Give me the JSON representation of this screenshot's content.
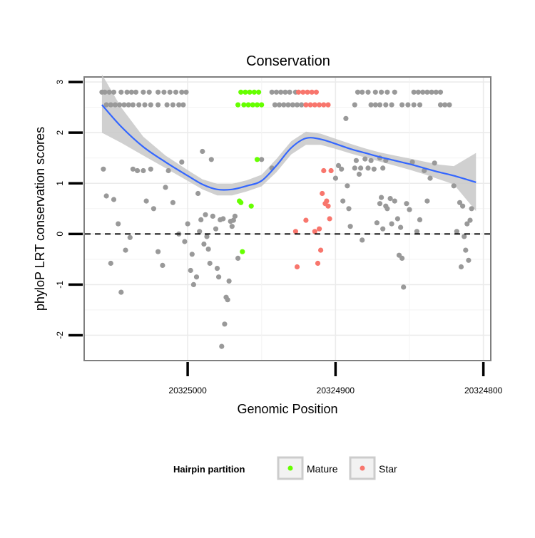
{
  "chart_data": {
    "type": "scatter",
    "title": "Conservation",
    "xlabel": "Genomic Position",
    "ylabel": "phyloP LRT conservation scores",
    "x_reversed": true,
    "xlim": [
      20325070,
      20324795
    ],
    "ylim": [
      -2.5,
      3.1
    ],
    "x_ticks": [
      20325000,
      20324900,
      20324800
    ],
    "x_tick_labels": [
      "20325000",
      "20324900",
      "20324800"
    ],
    "y_ticks": [
      -2,
      -1,
      0,
      1,
      2,
      3
    ],
    "y_tick_labels": [
      "-2",
      "-1",
      "0",
      "1",
      "2",
      "3"
    ],
    "reference_line": {
      "y": 0,
      "style": "dashed",
      "color": "#000000"
    },
    "grid": true,
    "legend": {
      "title": "Hairpin partition",
      "position": "bottom",
      "entries": [
        {
          "label": "Mature",
          "color": "#66ff00"
        },
        {
          "label": "Star",
          "color": "#f8766d"
        }
      ]
    },
    "colors": {
      "other": "#999999",
      "Mature": "#66ff00",
      "Star": "#f8766d",
      "smooth": "#3366ff",
      "ribbon": "#c8c8c8"
    },
    "smooth": {
      "x": [
        20325058,
        20325045,
        20325030,
        20325015,
        20325000,
        20324990,
        20324980,
        20324970,
        20324960,
        20324950,
        20324940,
        20324930,
        20324920,
        20324910,
        20324900,
        20324890,
        20324880,
        20324870,
        20324860,
        20324850,
        20324840,
        20324830,
        20324820,
        20324805
      ],
      "y": [
        2.55,
        2.12,
        1.72,
        1.42,
        1.15,
        0.98,
        0.88,
        0.88,
        0.95,
        1.05,
        1.35,
        1.7,
        1.89,
        1.87,
        1.78,
        1.68,
        1.6,
        1.52,
        1.45,
        1.38,
        1.3,
        1.22,
        1.15,
        1.02
      ],
      "lower": [
        2.0,
        1.8,
        1.55,
        1.3,
        1.05,
        0.88,
        0.76,
        0.76,
        0.84,
        0.94,
        1.22,
        1.57,
        1.76,
        1.76,
        1.68,
        1.59,
        1.51,
        1.43,
        1.35,
        1.27,
        1.18,
        1.08,
        0.98,
        0.45
      ],
      "upper": [
        3.15,
        2.5,
        1.92,
        1.55,
        1.26,
        1.08,
        0.99,
        0.99,
        1.06,
        1.17,
        1.48,
        1.83,
        2.02,
        1.98,
        1.88,
        1.78,
        1.69,
        1.61,
        1.55,
        1.49,
        1.43,
        1.37,
        1.34,
        1.6
      ]
    },
    "series": [
      {
        "name": "other",
        "points": [
          [
            20325058,
            2.8
          ],
          [
            20325056,
            2.8
          ],
          [
            20325053,
            2.8
          ],
          [
            20325050,
            2.8
          ],
          [
            20325045,
            2.8
          ],
          [
            20325041,
            2.8
          ],
          [
            20325038,
            2.8
          ],
          [
            20325035,
            2.8
          ],
          [
            20325030,
            2.8
          ],
          [
            20325026,
            2.8
          ],
          [
            20325020,
            2.8
          ],
          [
            20325016,
            2.8
          ],
          [
            20325012,
            2.8
          ],
          [
            20325008,
            2.8
          ],
          [
            20325004,
            2.8
          ],
          [
            20325001,
            2.8
          ],
          [
            20325055,
            2.55
          ],
          [
            20325052,
            2.55
          ],
          [
            20325049,
            2.55
          ],
          [
            20325046,
            2.55
          ],
          [
            20325043,
            2.55
          ],
          [
            20325040,
            2.55
          ],
          [
            20325037,
            2.55
          ],
          [
            20325033,
            2.55
          ],
          [
            20325029,
            2.55
          ],
          [
            20325025,
            2.55
          ],
          [
            20325020,
            2.55
          ],
          [
            20325014,
            2.55
          ],
          [
            20325010,
            2.55
          ],
          [
            20325006,
            2.55
          ],
          [
            20325003,
            2.55
          ],
          [
            20324943,
            2.8
          ],
          [
            20324940,
            2.8
          ],
          [
            20324937,
            2.8
          ],
          [
            20324934,
            2.8
          ],
          [
            20324931,
            2.8
          ],
          [
            20324927,
            2.8
          ],
          [
            20324941,
            2.55
          ],
          [
            20324938,
            2.55
          ],
          [
            20324935,
            2.55
          ],
          [
            20324932,
            2.55
          ],
          [
            20324929,
            2.55
          ],
          [
            20324926,
            2.55
          ],
          [
            20324923,
            2.55
          ],
          [
            20324885,
            2.8
          ],
          [
            20324882,
            2.8
          ],
          [
            20324878,
            2.8
          ],
          [
            20324873,
            2.8
          ],
          [
            20324869,
            2.8
          ],
          [
            20324865,
            2.8
          ],
          [
            20324860,
            2.8
          ],
          [
            20324847,
            2.8
          ],
          [
            20324844,
            2.8
          ],
          [
            20324841,
            2.8
          ],
          [
            20324838,
            2.8
          ],
          [
            20324835,
            2.8
          ],
          [
            20324832,
            2.8
          ],
          [
            20324829,
            2.8
          ],
          [
            20324887,
            2.55
          ],
          [
            20324876,
            2.55
          ],
          [
            20324873,
            2.55
          ],
          [
            20324870,
            2.55
          ],
          [
            20324866,
            2.55
          ],
          [
            20324862,
            2.55
          ],
          [
            20324855,
            2.55
          ],
          [
            20324851,
            2.55
          ],
          [
            20324847,
            2.55
          ],
          [
            20324843,
            2.55
          ],
          [
            20324829,
            2.55
          ],
          [
            20324826,
            2.55
          ],
          [
            20324823,
            2.55
          ],
          [
            20325057,
            1.28
          ],
          [
            20325055,
            0.75
          ],
          [
            20325052,
            -0.58
          ],
          [
            20325050,
            0.68
          ],
          [
            20325047,
            0.2
          ],
          [
            20325045,
            -1.15
          ],
          [
            20325042,
            -0.32
          ],
          [
            20325039,
            -0.07
          ],
          [
            20325037,
            1.28
          ],
          [
            20325034,
            1.25
          ],
          [
            20325030,
            1.25
          ],
          [
            20325028,
            0.65
          ],
          [
            20325025,
            1.28
          ],
          [
            20325023,
            0.5
          ],
          [
            20325020,
            -0.35
          ],
          [
            20325017,
            -0.62
          ],
          [
            20325015,
            0.92
          ],
          [
            20325013,
            1.25
          ],
          [
            20325010,
            0.62
          ],
          [
            20325006,
            0.0
          ],
          [
            20325004,
            1.42
          ],
          [
            20325002,
            -0.15
          ],
          [
            20325000,
            0.2
          ],
          [
            20324998,
            -0.72
          ],
          [
            20324997,
            -0.4
          ],
          [
            20324996,
            -1.0
          ],
          [
            20324994,
            -0.85
          ],
          [
            20324993,
            0.8
          ],
          [
            20324992,
            0.05
          ],
          [
            20324991,
            0.28
          ],
          [
            20324990,
            1.63
          ],
          [
            20324989,
            -0.2
          ],
          [
            20324988,
            0.38
          ],
          [
            20324987,
            -0.05
          ],
          [
            20324986,
            -0.3
          ],
          [
            20324985,
            -0.58
          ],
          [
            20324984,
            1.47
          ],
          [
            20324983,
            0.35
          ],
          [
            20324981,
            0.1
          ],
          [
            20324980,
            -0.68
          ],
          [
            20324979,
            -0.85
          ],
          [
            20324978,
            0.28
          ],
          [
            20324977,
            -2.22
          ],
          [
            20324976,
            0.3
          ],
          [
            20324975,
            -1.78
          ],
          [
            20324974,
            -1.25
          ],
          [
            20324973,
            -1.3
          ],
          [
            20324972,
            -0.93
          ],
          [
            20324971,
            0.25
          ],
          [
            20324970,
            0.15
          ],
          [
            20324969,
            0.27
          ],
          [
            20324968,
            0.35
          ],
          [
            20324966,
            -0.48
          ],
          [
            20324950,
            1.47
          ],
          [
            20324943,
            1.3
          ],
          [
            20324900,
            1.1
          ],
          [
            20324898,
            1.35
          ],
          [
            20324896,
            1.28
          ],
          [
            20324895,
            0.65
          ],
          [
            20324893,
            2.28
          ],
          [
            20324892,
            0.95
          ],
          [
            20324891,
            0.5
          ],
          [
            20324890,
            0.15
          ],
          [
            20324887,
            1.3
          ],
          [
            20324886,
            1.45
          ],
          [
            20324884,
            1.18
          ],
          [
            20324883,
            1.3
          ],
          [
            20324882,
            -0.12
          ],
          [
            20324880,
            1.48
          ],
          [
            20324878,
            1.3
          ],
          [
            20324876,
            1.45
          ],
          [
            20324874,
            1.28
          ],
          [
            20324872,
            0.22
          ],
          [
            20324870,
            1.5
          ],
          [
            20324868,
            1.3
          ],
          [
            20324866,
            1.45
          ],
          [
            20324870,
            0.6
          ],
          [
            20324869,
            0.72
          ],
          [
            20324868,
            0.1
          ],
          [
            20324866,
            0.55
          ],
          [
            20324865,
            0.5
          ],
          [
            20324863,
            0.7
          ],
          [
            20324862,
            0.2
          ],
          [
            20324860,
            0.65
          ],
          [
            20324858,
            0.3
          ],
          [
            20324857,
            -0.42
          ],
          [
            20324856,
            0.13
          ],
          [
            20324855,
            -0.48
          ],
          [
            20324854,
            -1.05
          ],
          [
            20324852,
            0.6
          ],
          [
            20324850,
            0.48
          ],
          [
            20324848,
            1.42
          ],
          [
            20324845,
            0.05
          ],
          [
            20324843,
            0.28
          ],
          [
            20324840,
            1.25
          ],
          [
            20324838,
            0.65
          ],
          [
            20324836,
            1.1
          ],
          [
            20324833,
            1.4
          ],
          [
            20324820,
            0.95
          ],
          [
            20324818,
            0.05
          ],
          [
            20324816,
            0.62
          ],
          [
            20324815,
            -0.65
          ],
          [
            20324814,
            0.55
          ],
          [
            20324813,
            -0.05
          ],
          [
            20324812,
            -0.32
          ],
          [
            20324811,
            0.2
          ],
          [
            20324810,
            -0.52
          ],
          [
            20324809,
            0.27
          ],
          [
            20324808,
            0.5
          ]
        ]
      },
      {
        "name": "Mature",
        "points": [
          [
            20324964,
            2.8
          ],
          [
            20324961,
            2.8
          ],
          [
            20324958,
            2.8
          ],
          [
            20324955,
            2.8
          ],
          [
            20324952,
            2.8
          ],
          [
            20324966,
            2.55
          ],
          [
            20324962,
            2.55
          ],
          [
            20324959,
            2.55
          ],
          [
            20324956,
            2.55
          ],
          [
            20324953,
            2.55
          ],
          [
            20324950,
            2.55
          ],
          [
            20324965,
            0.65
          ],
          [
            20324964,
            0.62
          ],
          [
            20324957,
            0.55
          ],
          [
            20324953,
            1.47
          ],
          [
            20324963,
            -0.35
          ]
        ]
      },
      {
        "name": "Star",
        "points": [
          [
            20324925,
            2.8
          ],
          [
            20324922,
            2.8
          ],
          [
            20324919,
            2.8
          ],
          [
            20324916,
            2.8
          ],
          [
            20324913,
            2.8
          ],
          [
            20324920,
            2.55
          ],
          [
            20324917,
            2.55
          ],
          [
            20324914,
            2.55
          ],
          [
            20324911,
            2.55
          ],
          [
            20324908,
            2.55
          ],
          [
            20324905,
            2.55
          ],
          [
            20324927,
            0.05
          ],
          [
            20324926,
            -0.65
          ],
          [
            20324920,
            0.27
          ],
          [
            20324914,
            0.05
          ],
          [
            20324912,
            -0.58
          ],
          [
            20324911,
            0.1
          ],
          [
            20324910,
            -0.32
          ],
          [
            20324909,
            0.8
          ],
          [
            20324908,
            1.25
          ],
          [
            20324907,
            0.6
          ],
          [
            20324906,
            0.65
          ],
          [
            20324905,
            0.55
          ],
          [
            20324904,
            0.3
          ],
          [
            20324903,
            1.25
          ]
        ]
      }
    ]
  }
}
